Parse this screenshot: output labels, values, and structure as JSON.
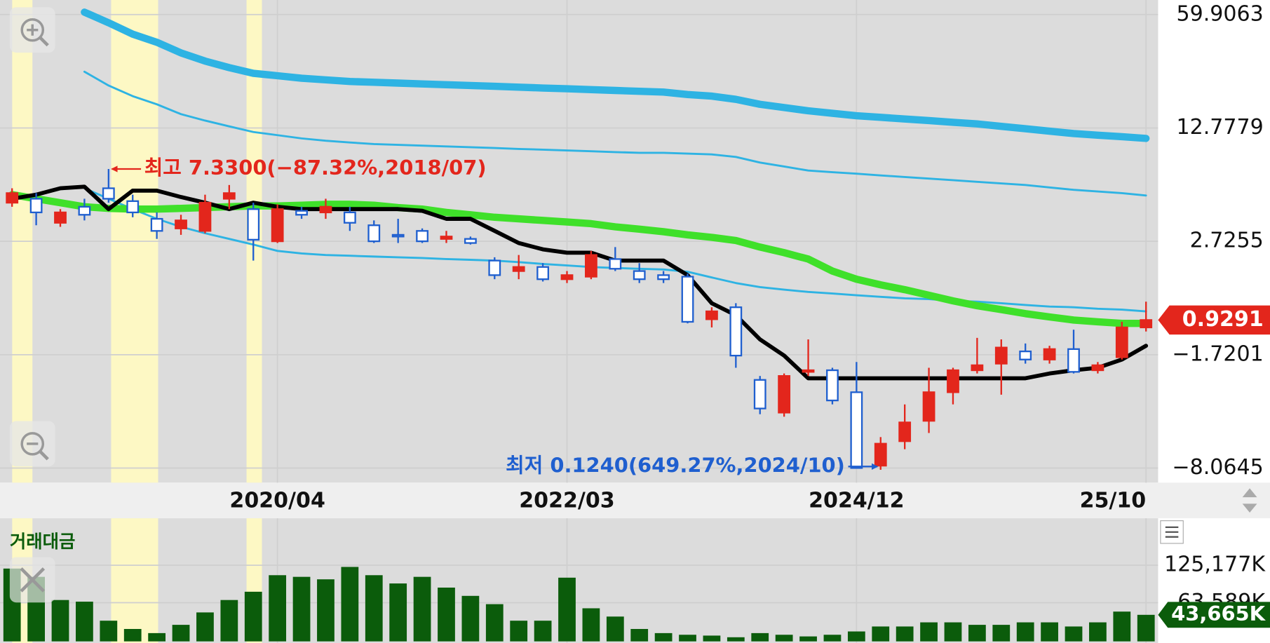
{
  "chart_data": [
    {
      "type": "candlestick",
      "categories": [
        null,
        null,
        null,
        null,
        null,
        null,
        null,
        null,
        null,
        null,
        null,
        "2020/04",
        null,
        null,
        null,
        null,
        null,
        null,
        null,
        null,
        null,
        null,
        null,
        "2022/03",
        null,
        null,
        null,
        null,
        null,
        null,
        null,
        null,
        null,
        null,
        null,
        "2024/12",
        null,
        null,
        null,
        null,
        null,
        null,
        null,
        null,
        null,
        null,
        null,
        "25/10"
      ],
      "open": [
        6.15,
        6.5,
        4.37,
        5.79,
        7.43,
        6.29,
        4.72,
        3.87,
        3.65,
        6.5,
        5.58,
        2.73,
        5.43,
        5.29,
        5.29,
        4.15,
        3.3,
        3.65,
        2.94,
        2.94,
        1.97,
        1.56,
        1.72,
        1.24,
        1.34,
        2.03,
        1.56,
        1.4,
        1.34,
        -0.33,
        0.14,
        -3.13,
        -4.96,
        -2.68,
        -2.59,
        -3.82,
        -7.93,
        -6.56,
        -5.42,
        -3.82,
        -2.59,
        -2.22,
        -1.59,
        -1.99,
        -1.5,
        -2.59,
        -1.86,
        -0.65
      ],
      "high": [
        7.43,
        7.0,
        5.58,
        6.5,
        9.14,
        6.86,
        5.29,
        5.08,
        6.86,
        7.72,
        6.15,
        6.01,
        5.79,
        6.5,
        5.79,
        4.58,
        4.72,
        3.87,
        3.65,
        3.15,
        2.1,
        2.19,
        1.87,
        1.56,
        2.35,
        2.5,
        1.87,
        1.56,
        1.46,
        0.14,
        0.3,
        -2.91,
        -2.77,
        -1.12,
        -2.45,
        -2.13,
        -6.33,
        -4.5,
        -2.45,
        -2.45,
        -1.06,
        -1.12,
        -1.28,
        -1.37,
        -0.74,
        -2.13,
        -0.43,
        0.36
      ],
      "low": [
        5.79,
        4.15,
        4.01,
        4.58,
        6.15,
        4.86,
        2.94,
        3.3,
        3.44,
        5.58,
        1.97,
        2.66,
        4.72,
        4.72,
        3.65,
        2.66,
        2.66,
        2.66,
        2.66,
        2.6,
        1.24,
        1.24,
        1.15,
        1.09,
        1.24,
        1.56,
        1.09,
        1.09,
        -0.49,
        -0.65,
        -2.45,
        -5.05,
        -5.19,
        -2.91,
        -4.5,
        -8.06,
        -8.16,
        -7.01,
        -6.1,
        -4.5,
        -2.77,
        -3.96,
        -2.22,
        -2.22,
        -2.77,
        -2.77,
        -1.99,
        -0.81
      ],
      "close": [
        7.0,
        5.29,
        5.29,
        5.08,
        6.5,
        5.29,
        3.65,
        4.58,
        6.15,
        7.0,
        2.87,
        5.58,
        5.08,
        5.79,
        4.37,
        2.73,
        3.15,
        2.73,
        3.15,
        2.66,
        1.4,
        1.72,
        1.24,
        1.4,
        2.19,
        1.65,
        1.24,
        1.24,
        -0.43,
        -0.02,
        -1.77,
        -4.73,
        -2.91,
        -2.59,
        -4.28,
        -8.06,
        -6.7,
        -5.51,
        -3.82,
        -2.59,
        -2.31,
        -1.44,
        -1.99,
        -1.5,
        -2.68,
        -2.31,
        -0.65,
        -0.36
      ],
      "up_color": "#e3261c",
      "down_color": "#1f5fcf",
      "lines": [
        {
          "color": "#2eb3e3",
          "width": 9,
          "values": [
            null,
            null,
            null,
            60.92,
            56.52,
            51.77,
            48.38,
            43.97,
            40.58,
            37.87,
            35.5,
            34.48,
            33.46,
            32.78,
            32.1,
            31.77,
            31.43,
            31.09,
            30.75,
            30.41,
            30.07,
            29.73,
            29.39,
            29.06,
            28.71,
            28.38,
            28.04,
            27.7,
            26.68,
            26.01,
            24.65,
            22.61,
            21.26,
            19.9,
            18.88,
            17.86,
            17.19,
            16.51,
            15.83,
            15.15,
            14.47,
            13.45,
            12.71,
            12.49,
            12.28,
            12.14,
            12.0,
            11.85
          ]
        },
        {
          "color": "#2eb3e3",
          "width": 2.5,
          "values": [
            null,
            null,
            null,
            36.17,
            30.41,
            26.0,
            22.61,
            18.54,
            15.83,
            13.46,
            12.42,
            12.14,
            11.85,
            11.64,
            11.49,
            11.35,
            11.28,
            11.21,
            11.14,
            11.07,
            11.0,
            10.92,
            10.85,
            10.78,
            10.71,
            10.64,
            10.57,
            10.57,
            10.5,
            10.43,
            10.21,
            9.71,
            9.36,
            9.0,
            8.86,
            8.72,
            8.57,
            8.43,
            8.29,
            8.15,
            8.0,
            7.86,
            7.72,
            7.5,
            7.29,
            7.15,
            7.0,
            6.79
          ]
        },
        {
          "color": "#2eb3e3",
          "width": 2.5,
          "values": [
            null,
            null,
            null,
            7.43,
            6.5,
            5.58,
            4.72,
            4.01,
            3.44,
            2.94,
            2.6,
            2.35,
            2.25,
            2.19,
            2.16,
            2.13,
            2.1,
            2.07,
            2.03,
            2.0,
            1.97,
            1.91,
            1.84,
            1.78,
            1.72,
            1.68,
            1.65,
            1.62,
            1.53,
            1.31,
            1.09,
            0.93,
            0.83,
            0.74,
            0.68,
            0.61,
            0.55,
            0.49,
            0.46,
            0.39,
            0.36,
            0.3,
            0.23,
            0.17,
            0.14,
            0.08,
            0.05,
            -0.02
          ]
        },
        {
          "color": "#3fe02a",
          "width": 9,
          "values": [
            6.86,
            6.5,
            6.15,
            5.79,
            5.65,
            5.58,
            5.58,
            5.65,
            5.72,
            5.79,
            5.86,
            5.86,
            5.93,
            6.01,
            6.01,
            5.93,
            5.72,
            5.58,
            5.29,
            5.08,
            4.86,
            4.72,
            4.58,
            4.44,
            4.29,
            4.01,
            3.8,
            3.58,
            3.3,
            3.08,
            2.8,
            2.5,
            2.28,
            2.03,
            1.56,
            1.24,
            1.02,
            0.83,
            0.61,
            0.39,
            0.2,
            0.05,
            -0.11,
            -0.24,
            -0.36,
            -0.43,
            -0.49,
            -0.49
          ]
        },
        {
          "color": "#000000",
          "width": 5,
          "values": [
            6.5,
            6.86,
            7.43,
            7.57,
            5.58,
            7.22,
            7.22,
            6.65,
            6.15,
            5.58,
            6.15,
            5.79,
            5.58,
            5.58,
            5.58,
            5.58,
            5.58,
            5.43,
            4.72,
            4.72,
            3.65,
            2.66,
            2.41,
            2.28,
            2.28,
            1.97,
            1.97,
            1.97,
            1.4,
            0.3,
            -0.17,
            -1.12,
            -1.77,
            -3.04,
            -3.04,
            -3.04,
            -3.04,
            -3.04,
            -3.04,
            -3.04,
            -3.04,
            -3.04,
            -3.04,
            -2.77,
            -2.59,
            -2.45,
            -1.99,
            -1.37
          ]
        }
      ],
      "ylim": [
        -8.89,
        66.01
      ],
      "yticks": [
        59.9063,
        12.7779,
        2.7255,
        {
          "value": -1.7201,
          "label": "−1.7201"
        },
        {
          "value": -8.0645,
          "label": "−8.0645"
        }
      ],
      "annotations": [
        "최고 7.3300(−87.32%,2018/07)",
        "최저 0.1240(649.27%,2024/10)"
      ],
      "last_price_label": "0.9291"
    },
    {
      "type": "bar",
      "title": "거래대금",
      "color": "#0b5c0b",
      "values": [
        119733,
        106127,
        68030,
        65309,
        34015,
        20409,
        13606,
        27212,
        47621,
        68030,
        81636,
        108848,
        106127,
        102045,
        122454,
        108848,
        95242,
        106127,
        88439,
        74833,
        61227,
        34015,
        34015,
        104766,
        54424,
        40818,
        20409,
        13606,
        10885,
        9524,
        6803,
        13606,
        10885,
        8164,
        10885,
        16327,
        24491,
        24491,
        31294,
        31294,
        27212,
        27212,
        31294,
        31294,
        24491,
        31294,
        48982,
        43665
      ],
      "ylim": [
        0,
        199750
      ],
      "yticks": [
        {
          "value": 125177,
          "label": "125,177K"
        },
        {
          "value": 63589,
          "label": "63,589K"
        }
      ],
      "last_value_label": "43,665K"
    }
  ]
}
